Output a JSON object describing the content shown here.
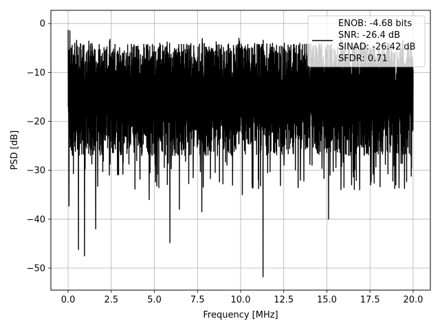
{
  "chart_data": {
    "type": "line",
    "xlabel": "Frequency [MHz]",
    "ylabel": "PSD [dB]",
    "xlim": [
      -1,
      21.0
    ],
    "ylim": [
      -54.5,
      2.7
    ],
    "xticks": [
      "0.0",
      "2.5",
      "5.0",
      "7.5",
      "10.0",
      "12.5",
      "15.0",
      "17.5",
      "20.0"
    ],
    "xtick_values": [
      0,
      2.5,
      5,
      7.5,
      10,
      12.5,
      15,
      17.5,
      20
    ],
    "yticks": [
      "0",
      "−10",
      "−20",
      "−30",
      "−40",
      "−50"
    ],
    "ytick_values": [
      0,
      -10,
      -20,
      -30,
      -40,
      -50
    ],
    "grid": true,
    "legend": {
      "placement": "top-right",
      "lines": [
        "ENOB: -4.68 bits",
        "SNR: -26.4 dB",
        "SINAD: -26.42 dB",
        "SFDR: 0.71"
      ]
    },
    "series": [
      {
        "color": "#000000",
        "x_range": [
          0,
          20
        ],
        "typical_upper_db": -8,
        "typical_lower_db": -28,
        "notable_dips": [
          {
            "x": 0.05,
            "y": -37.3
          },
          {
            "x": 0.6,
            "y": -46.2
          },
          {
            "x": 0.95,
            "y": -47.5
          },
          {
            "x": 1.6,
            "y": -42.0
          },
          {
            "x": 4.7,
            "y": -36.0
          },
          {
            "x": 5.9,
            "y": -44.8
          },
          {
            "x": 6.45,
            "y": -38.0
          },
          {
            "x": 7.75,
            "y": -38.5
          },
          {
            "x": 10.1,
            "y": -35.0
          },
          {
            "x": 11.3,
            "y": -51.8
          },
          {
            "x": 15.1,
            "y": -40.0
          },
          {
            "x": 16.9,
            "y": -34.0
          },
          {
            "x": 19.0,
            "y": -33.0
          }
        ],
        "notable_peaks": [
          {
            "x": 0.0,
            "y": -1.3
          },
          {
            "x": 0.1,
            "y": -1.5
          },
          {
            "x": 9.9,
            "y": -3.0
          },
          {
            "x": 15.8,
            "y": -2.5
          }
        ]
      }
    ]
  }
}
